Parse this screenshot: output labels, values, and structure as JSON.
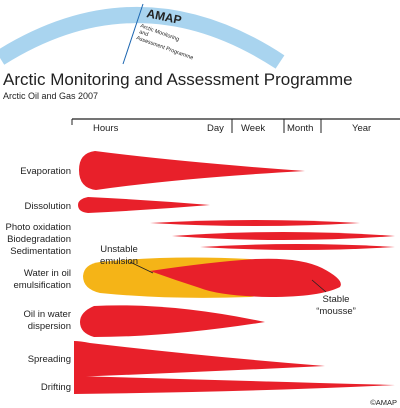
{
  "header": {
    "logo_word": "AMAP",
    "logo_tagline": [
      "Arctic Monitoring",
      "and",
      "Assessment Programme"
    ],
    "title": "Arctic Monitoring and Assessment Programme",
    "subtitle": "Arctic Oil and Gas 2007"
  },
  "timeline": {
    "labels": [
      "Hours",
      "Day",
      "Week",
      "Month",
      "Year"
    ]
  },
  "processes": [
    {
      "lines": [
        "Evaporation"
      ]
    },
    {
      "lines": [
        "Dissolution"
      ]
    },
    {
      "lines": [
        "Photo oxidation"
      ]
    },
    {
      "lines": [
        "Biodegradation"
      ]
    },
    {
      "lines": [
        "Sedimentation"
      ]
    },
    {
      "lines": [
        "Water in oil",
        "emulsification"
      ]
    },
    {
      "lines": [
        "Oil in water",
        "dispersion"
      ]
    },
    {
      "lines": [
        "Spreading"
      ]
    },
    {
      "lines": [
        "Drifting"
      ]
    }
  ],
  "annotations": {
    "unstable": [
      "Unstable",
      "emulsion"
    ],
    "stable": [
      "Stable",
      "“mousse”"
    ]
  },
  "colors": {
    "red": "#e8202a",
    "yellow": "#f5b417",
    "arc": "#a9d4ef",
    "text": "#222222"
  },
  "copyright": "©AMAP"
}
